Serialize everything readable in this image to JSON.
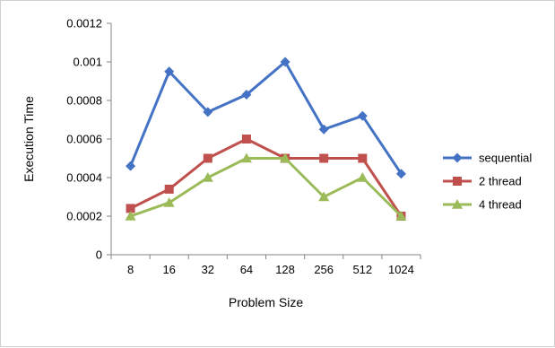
{
  "chart_data": {
    "type": "line",
    "title": "",
    "xlabel": "Problem Size",
    "ylabel": "Execution Time",
    "categories": [
      "8",
      "16",
      "32",
      "64",
      "128",
      "256",
      "512",
      "1024"
    ],
    "ylim": [
      0,
      0.0012
    ],
    "yticks": [
      "0",
      "0.0002",
      "0.0004",
      "0.0006",
      "0.0008",
      "0.001",
      "0.0012"
    ],
    "grid": false,
    "legend_position": "right",
    "series": [
      {
        "name": "sequential",
        "color": "#4472c4",
        "marker": "diamond",
        "values": [
          0.00046,
          0.00095,
          0.00074,
          0.00083,
          0.001,
          0.00065,
          0.00072,
          0.00042
        ]
      },
      {
        "name": "2 thread",
        "color": "#c0504d",
        "marker": "square",
        "values": [
          0.00024,
          0.00034,
          0.0005,
          0.0006,
          0.0005,
          0.0005,
          0.0005,
          0.0002
        ]
      },
      {
        "name": "4 thread",
        "color": "#9bbb59",
        "marker": "triangle",
        "values": [
          0.0002,
          0.00027,
          0.0004,
          0.0005,
          0.0005,
          0.0003,
          0.0004,
          0.0002
        ]
      }
    ]
  }
}
